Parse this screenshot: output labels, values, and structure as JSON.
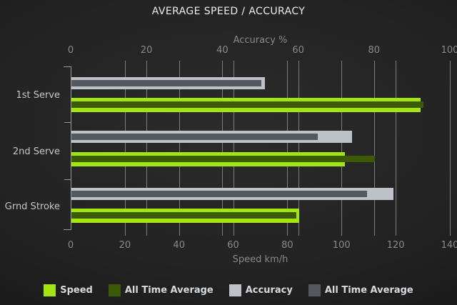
{
  "chart_data": {
    "type": "bar",
    "orientation": "horizontal",
    "title": "AVERAGE SPEED / ACCURACY",
    "categories": [
      "1st Serve",
      "2nd Serve",
      "Grnd Stroke"
    ],
    "series": [
      {
        "name": "Speed",
        "axis": "bottom",
        "values": [
          129,
          101,
          84
        ],
        "color": "#a2e513"
      },
      {
        "name": "All Time Average",
        "axis": "bottom",
        "values": [
          130,
          112,
          83
        ],
        "color": "#3c5a06"
      },
      {
        "name": "Accuracy",
        "axis": "top",
        "values": [
          51,
          74,
          85
        ],
        "color": "#bcc2c7"
      },
      {
        "name": "All Time Average",
        "axis": "top",
        "values": [
          50,
          65,
          78
        ],
        "color": "#53595f"
      }
    ],
    "top_axis": {
      "label": "Accuracy %",
      "min": 0,
      "max": 100,
      "ticks": [
        0,
        20,
        40,
        60,
        80,
        100
      ]
    },
    "bottom_axis": {
      "label": "Speed km/h",
      "min": 0,
      "max": 140,
      "ticks": [
        0,
        20,
        40,
        60,
        80,
        100,
        120,
        140
      ]
    },
    "grid": true,
    "legend_position": "bottom"
  },
  "colors": {
    "background": "#222222",
    "gridline": "#7d7d7d",
    "axis": "#9a9a9a",
    "tick_text": "#8a8a8a",
    "category_text": "#c6c6c6",
    "title_text": "#ececec",
    "legend_text": "#d6dadd"
  }
}
